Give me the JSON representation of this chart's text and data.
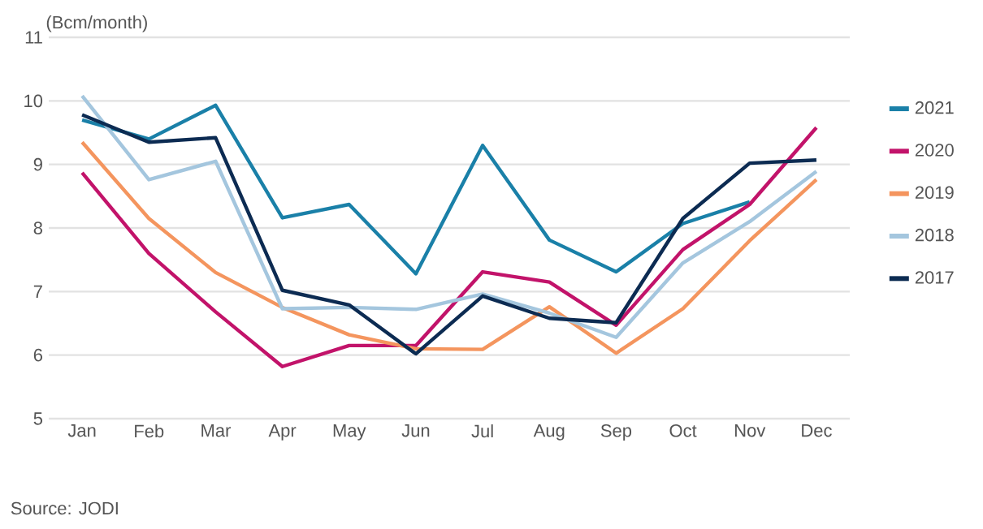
{
  "chart_data": {
    "type": "line",
    "ylabel": "(Bcm/month)",
    "categories": [
      "Jan",
      "Feb",
      "Mar",
      "Apr",
      "May",
      "Jun",
      "Jul",
      "Aug",
      "Sep",
      "Oct",
      "Nov",
      "Dec"
    ],
    "series": [
      {
        "name": "2021",
        "color": "#1a80a8",
        "values": [
          9.7,
          9.4,
          9.93,
          8.16,
          8.37,
          7.28,
          9.3,
          7.81,
          7.31,
          8.07,
          8.41,
          null
        ]
      },
      {
        "name": "2020",
        "color": "#c2136a",
        "values": [
          8.87,
          7.6,
          6.68,
          5.82,
          6.15,
          6.15,
          7.31,
          7.15,
          6.47,
          7.66,
          8.37,
          9.58
        ]
      },
      {
        "name": "2019",
        "color": "#f4955e",
        "values": [
          9.35,
          8.15,
          7.3,
          6.75,
          6.32,
          6.1,
          6.09,
          6.76,
          6.03,
          6.73,
          7.8,
          8.76
        ]
      },
      {
        "name": "2018",
        "color": "#a4c6de",
        "values": [
          10.08,
          8.76,
          9.05,
          6.73,
          6.75,
          6.72,
          6.96,
          6.66,
          6.28,
          7.45,
          8.1,
          8.89
        ]
      },
      {
        "name": "2017",
        "color": "#0c2b52",
        "values": [
          9.78,
          9.35,
          9.42,
          7.02,
          6.79,
          6.02,
          6.93,
          6.58,
          6.51,
          8.15,
          9.02,
          9.07
        ]
      }
    ],
    "ylim": [
      5,
      11
    ],
    "yticks": [
      5,
      6,
      7,
      8,
      9,
      10,
      11
    ],
    "grid": "y",
    "legend": "right",
    "marker": "none",
    "line_style": "solid",
    "annotations": [
      "Source: JODI"
    ]
  }
}
